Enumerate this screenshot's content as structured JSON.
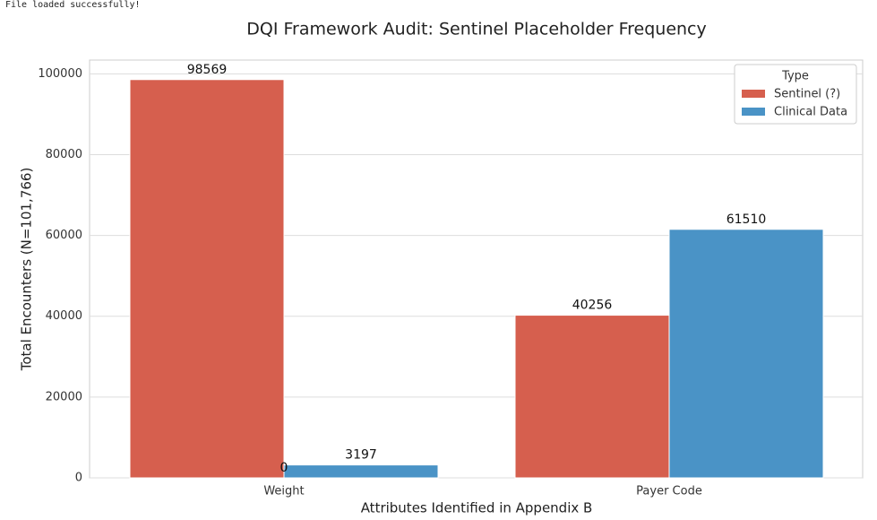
{
  "console_output": "File loaded successfully!",
  "chart_data": {
    "type": "bar",
    "title": "DQI Framework Audit: Sentinel Placeholder Frequency",
    "x_label": "Attributes Identified in Appendix B",
    "y_label": "Total Encounters (N=101,766)",
    "categories": [
      "Weight",
      "Payer Code"
    ],
    "series": [
      {
        "name": "Sentinel (?)",
        "color": "#d65f4e",
        "values": [
          98569,
          40256
        ]
      },
      {
        "name": "Clinical Data",
        "color": "#4a93c6",
        "values": [
          3197,
          61510
        ]
      }
    ],
    "extra_labels": [
      {
        "category": 0,
        "value": 0
      }
    ],
    "ylim": [
      0,
      103400
    ],
    "yticks": [
      0,
      20000,
      40000,
      60000,
      80000,
      100000
    ],
    "grid": true,
    "legend_title": "Type",
    "legend_position": "upper-right"
  }
}
